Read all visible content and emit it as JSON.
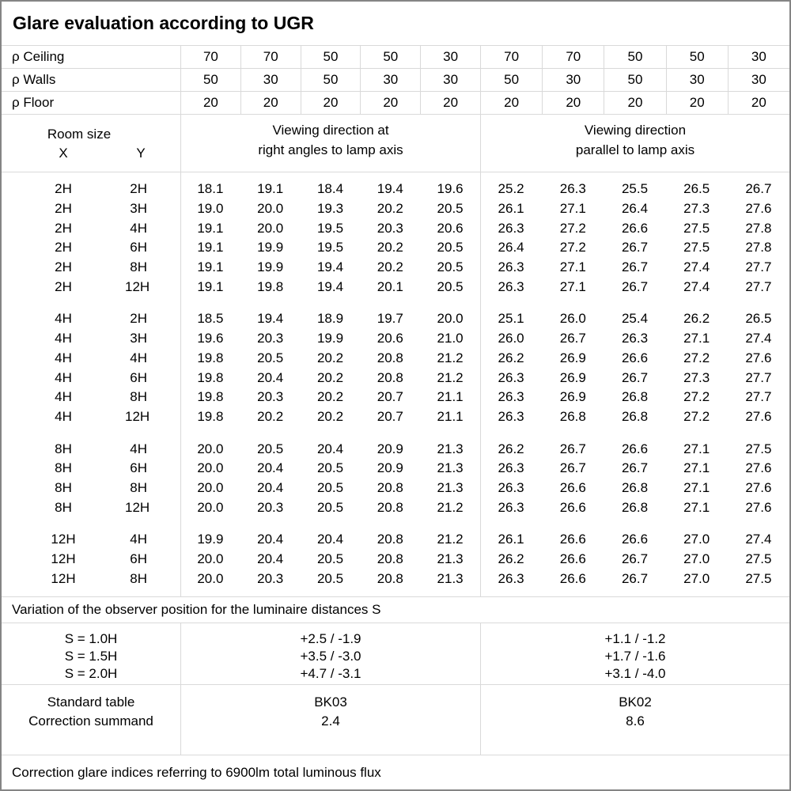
{
  "title": "Glare evaluation according to UGR",
  "colors": {
    "background": "#ffffff",
    "text": "#000000",
    "grid_line": "#d9d9d9",
    "outer_border": "#858585"
  },
  "reflectance": {
    "rows": [
      {
        "label": "ρ Ceiling",
        "values": [
          "70",
          "70",
          "50",
          "50",
          "30",
          "70",
          "70",
          "50",
          "50",
          "30"
        ]
      },
      {
        "label": "ρ Walls",
        "values": [
          "50",
          "30",
          "50",
          "30",
          "30",
          "50",
          "30",
          "50",
          "30",
          "30"
        ]
      },
      {
        "label": "ρ Floor",
        "values": [
          "20",
          "20",
          "20",
          "20",
          "20",
          "20",
          "20",
          "20",
          "20",
          "20"
        ]
      }
    ]
  },
  "header": {
    "room_size_label": "Room size",
    "x_label": "X",
    "y_label": "Y",
    "crosswise_line1": "Viewing direction at",
    "crosswise_line2": "right angles to lamp axis",
    "parallel_line1": "Viewing direction",
    "parallel_line2": "parallel to lamp axis"
  },
  "ugr_table": {
    "blocks": [
      {
        "rows": [
          {
            "x": "2H",
            "y": "2H",
            "crosswise": [
              "18.1",
              "19.1",
              "18.4",
              "19.4",
              "19.6"
            ],
            "parallel": [
              "25.2",
              "26.3",
              "25.5",
              "26.5",
              "26.7"
            ]
          },
          {
            "x": "2H",
            "y": "3H",
            "crosswise": [
              "19.0",
              "20.0",
              "19.3",
              "20.2",
              "20.5"
            ],
            "parallel": [
              "26.1",
              "27.1",
              "26.4",
              "27.3",
              "27.6"
            ]
          },
          {
            "x": "2H",
            "y": "4H",
            "crosswise": [
              "19.1",
              "20.0",
              "19.5",
              "20.3",
              "20.6"
            ],
            "parallel": [
              "26.3",
              "27.2",
              "26.6",
              "27.5",
              "27.8"
            ]
          },
          {
            "x": "2H",
            "y": "6H",
            "crosswise": [
              "19.1",
              "19.9",
              "19.5",
              "20.2",
              "20.5"
            ],
            "parallel": [
              "26.4",
              "27.2",
              "26.7",
              "27.5",
              "27.8"
            ]
          },
          {
            "x": "2H",
            "y": "8H",
            "crosswise": [
              "19.1",
              "19.9",
              "19.4",
              "20.2",
              "20.5"
            ],
            "parallel": [
              "26.3",
              "27.1",
              "26.7",
              "27.4",
              "27.7"
            ]
          },
          {
            "x": "2H",
            "y": "12H",
            "crosswise": [
              "19.1",
              "19.8",
              "19.4",
              "20.1",
              "20.5"
            ],
            "parallel": [
              "26.3",
              "27.1",
              "26.7",
              "27.4",
              "27.7"
            ]
          }
        ]
      },
      {
        "rows": [
          {
            "x": "4H",
            "y": "2H",
            "crosswise": [
              "18.5",
              "19.4",
              "18.9",
              "19.7",
              "20.0"
            ],
            "parallel": [
              "25.1",
              "26.0",
              "25.4",
              "26.2",
              "26.5"
            ]
          },
          {
            "x": "4H",
            "y": "3H",
            "crosswise": [
              "19.6",
              "20.3",
              "19.9",
              "20.6",
              "21.0"
            ],
            "parallel": [
              "26.0",
              "26.7",
              "26.3",
              "27.1",
              "27.4"
            ]
          },
          {
            "x": "4H",
            "y": "4H",
            "crosswise": [
              "19.8",
              "20.5",
              "20.2",
              "20.8",
              "21.2"
            ],
            "parallel": [
              "26.2",
              "26.9",
              "26.6",
              "27.2",
              "27.6"
            ]
          },
          {
            "x": "4H",
            "y": "6H",
            "crosswise": [
              "19.8",
              "20.4",
              "20.2",
              "20.8",
              "21.2"
            ],
            "parallel": [
              "26.3",
              "26.9",
              "26.7",
              "27.3",
              "27.7"
            ]
          },
          {
            "x": "4H",
            "y": "8H",
            "crosswise": [
              "19.8",
              "20.3",
              "20.2",
              "20.7",
              "21.1"
            ],
            "parallel": [
              "26.3",
              "26.9",
              "26.8",
              "27.2",
              "27.7"
            ]
          },
          {
            "x": "4H",
            "y": "12H",
            "crosswise": [
              "19.8",
              "20.2",
              "20.2",
              "20.7",
              "21.1"
            ],
            "parallel": [
              "26.3",
              "26.8",
              "26.8",
              "27.2",
              "27.6"
            ]
          }
        ]
      },
      {
        "rows": [
          {
            "x": "8H",
            "y": "4H",
            "crosswise": [
              "20.0",
              "20.5",
              "20.4",
              "20.9",
              "21.3"
            ],
            "parallel": [
              "26.2",
              "26.7",
              "26.6",
              "27.1",
              "27.5"
            ]
          },
          {
            "x": "8H",
            "y": "6H",
            "crosswise": [
              "20.0",
              "20.4",
              "20.5",
              "20.9",
              "21.3"
            ],
            "parallel": [
              "26.3",
              "26.7",
              "26.7",
              "27.1",
              "27.6"
            ]
          },
          {
            "x": "8H",
            "y": "8H",
            "crosswise": [
              "20.0",
              "20.4",
              "20.5",
              "20.8",
              "21.3"
            ],
            "parallel": [
              "26.3",
              "26.6",
              "26.8",
              "27.1",
              "27.6"
            ]
          },
          {
            "x": "8H",
            "y": "12H",
            "crosswise": [
              "20.0",
              "20.3",
              "20.5",
              "20.8",
              "21.2"
            ],
            "parallel": [
              "26.3",
              "26.6",
              "26.8",
              "27.1",
              "27.6"
            ]
          }
        ]
      },
      {
        "rows": [
          {
            "x": "12H",
            "y": "4H",
            "crosswise": [
              "19.9",
              "20.4",
              "20.4",
              "20.8",
              "21.2"
            ],
            "parallel": [
              "26.1",
              "26.6",
              "26.6",
              "27.0",
              "27.4"
            ]
          },
          {
            "x": "12H",
            "y": "6H",
            "crosswise": [
              "20.0",
              "20.4",
              "20.5",
              "20.8",
              "21.3"
            ],
            "parallel": [
              "26.2",
              "26.6",
              "26.7",
              "27.0",
              "27.5"
            ]
          },
          {
            "x": "12H",
            "y": "8H",
            "crosswise": [
              "20.0",
              "20.3",
              "20.5",
              "20.8",
              "21.3"
            ],
            "parallel": [
              "26.3",
              "26.6",
              "26.7",
              "27.0",
              "27.5"
            ]
          }
        ]
      }
    ]
  },
  "variation": {
    "caption": "Variation of the observer position for the luminaire distances S",
    "rows": [
      {
        "label": "S = 1.0H",
        "crosswise": "+2.5 / -1.9",
        "parallel": "+1.1 / -1.2"
      },
      {
        "label": "S = 1.5H",
        "crosswise": "+3.5 / -3.0",
        "parallel": "+1.7 / -1.6"
      },
      {
        "label": "S = 2.0H",
        "crosswise": "+4.7 / -3.1",
        "parallel": "+3.1 / -4.0"
      }
    ]
  },
  "summary": {
    "standard_table_label": "Standard table",
    "correction_summand_label": "Correction summand",
    "crosswise": {
      "standard_table": "BK03",
      "correction_summand": "2.4"
    },
    "parallel": {
      "standard_table": "BK02",
      "correction_summand": "8.6"
    }
  },
  "footer": "Correction glare indices referring to 6900lm total luminous flux"
}
